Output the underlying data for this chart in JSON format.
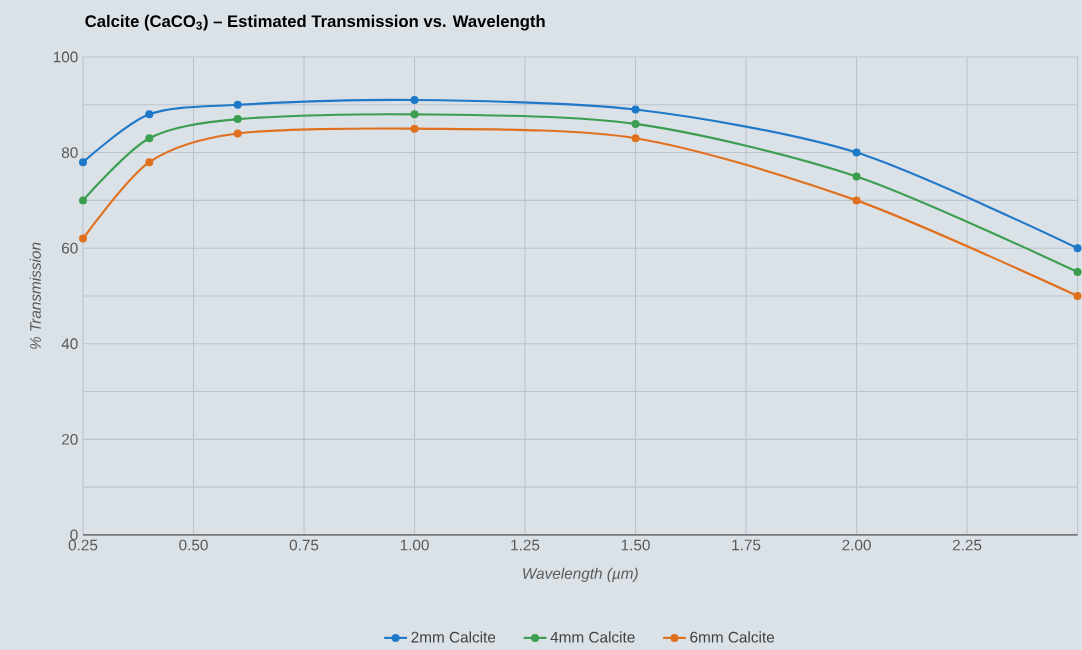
{
  "chart_data": {
    "type": "line",
    "title": "Calcite (CaCO$_{3}$) – Estimated Transmission vs. Wavelength",
    "xlabel": "Wavelength (µm)",
    "ylabel": "% Transmission",
    "x": [
      0.25,
      0.4,
      0.6,
      1.0,
      1.5,
      2.0,
      2.5
    ],
    "series": [
      {
        "name": "2mm Calcite",
        "color": "#1f78c8",
        "values": [
          78,
          88,
          90,
          91,
          89,
          80,
          60
        ]
      },
      {
        "name": "4mm Calcite",
        "color": "#3c9e50",
        "values": [
          70,
          83,
          87,
          88,
          86,
          75,
          55
        ]
      },
      {
        "name": "6mm Calcite",
        "color": "#e0701e",
        "values": [
          62,
          78,
          84,
          85,
          83,
          70,
          50
        ]
      }
    ],
    "xlim": [
      0.25,
      2.5
    ],
    "xticks": [
      {
        "value": 0.25,
        "label": "0.25"
      },
      {
        "value": 0.5,
        "label": "0.50"
      },
      {
        "value": 0.75,
        "label": "0.75"
      },
      {
        "value": 1.0,
        "label": "1.00"
      },
      {
        "value": 1.25,
        "label": "1.25"
      },
      {
        "value": 1.5,
        "label": "1.50"
      },
      {
        "value": 1.75,
        "label": "1.75"
      },
      {
        "value": 2.0,
        "label": "2.00"
      },
      {
        "value": 2.25,
        "label": "2.25"
      },
      {
        "value": 2.5,
        "label": null
      }
    ],
    "ylim": [
      0,
      100
    ],
    "yticks": [
      0,
      {
        "value": 10,
        "label": null
      },
      20,
      {
        "value": 30,
        "label": null
      },
      40,
      {
        "value": 50,
        "label": null
      },
      60,
      {
        "value": 70,
        "label": null
      },
      80,
      {
        "value": 90,
        "label": null
      },
      100
    ],
    "grid": true,
    "legend": "bottom",
    "marker": "circle",
    "line_style": "solid"
  }
}
